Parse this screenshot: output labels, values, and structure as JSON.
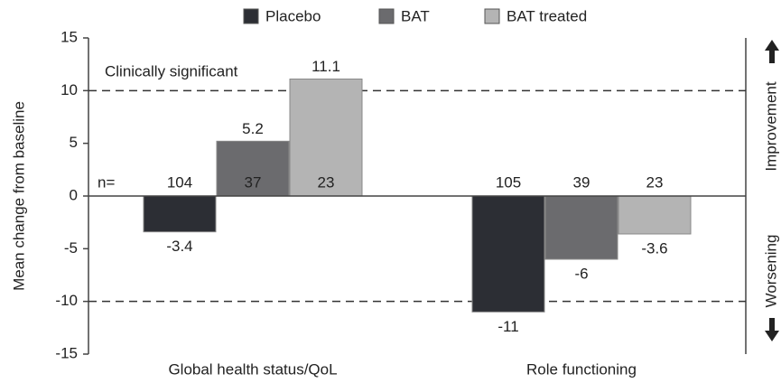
{
  "chart_data": {
    "type": "bar",
    "y_label": "Mean change from baseline",
    "categories": [
      "Global health status/QoL",
      "Role functioning"
    ],
    "series": [
      {
        "name": "Placebo",
        "color": "#2c2e34",
        "values": [
          -3.4,
          -11
        ],
        "n": [
          104,
          105
        ]
      },
      {
        "name": "BAT",
        "color": "#6b6b6e",
        "values": [
          5.2,
          -6
        ],
        "n": [
          37,
          39
        ]
      },
      {
        "name": "BAT treated",
        "color": "#b4b4b4",
        "values": [
          11.1,
          -3.6
        ],
        "n": [
          23,
          23
        ]
      }
    ],
    "n_label": "n=",
    "reference_lines": [
      10,
      -10
    ],
    "annotation": "Clinically significant",
    "right_labels": {
      "up": "Improvement",
      "down": "Worsening"
    },
    "ylim": [
      -15,
      15
    ],
    "yticks": [
      -15,
      -10,
      -5,
      0,
      5,
      10,
      15
    ]
  }
}
